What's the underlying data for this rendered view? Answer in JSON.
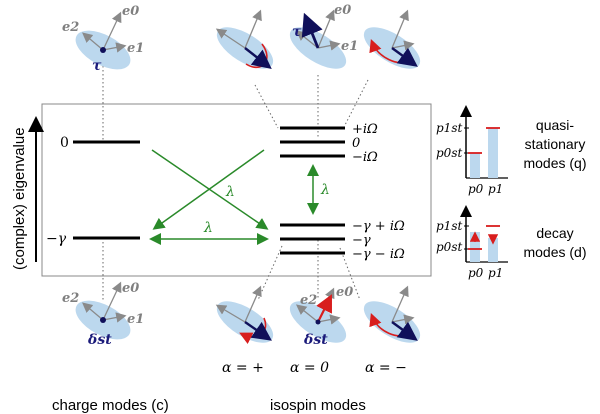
{
  "axis_label": "(complex) eigenvalue",
  "charge": {
    "levels": [
      "0",
      "−γ"
    ],
    "caption": "charge modes (c)"
  },
  "isospin": {
    "upper_levels": [
      "+iΩ",
      "0",
      "−iΩ"
    ],
    "lower_levels": [
      "−γ + iΩ",
      "−γ",
      "−γ − iΩ"
    ],
    "caption": "isospin modes",
    "alpha_labels": [
      "α = +",
      "α = 0",
      "α = −"
    ]
  },
  "couplings": {
    "lambda": "λ"
  },
  "basis": {
    "e0": "e0",
    "e1": "e1",
    "e2": "e2",
    "tau": "τ",
    "delta_st": "δst"
  },
  "insets": {
    "p_labels": {
      "p1st": "p1st",
      "p0st": "p0st",
      "p0": "p0",
      "p1": "p1"
    },
    "quasi": {
      "line1": "quasi-",
      "line2": "stationary",
      "line3": "modes (q)"
    },
    "decay": {
      "line1": "decay",
      "line2": "modes (d)"
    }
  },
  "colors": {
    "ellipse": "#bcd8ee",
    "arrow_blue": "#10105a",
    "arrow_red": "#d81e1e",
    "green": "#2a8a2a",
    "gray": "#8a8a8a"
  }
}
